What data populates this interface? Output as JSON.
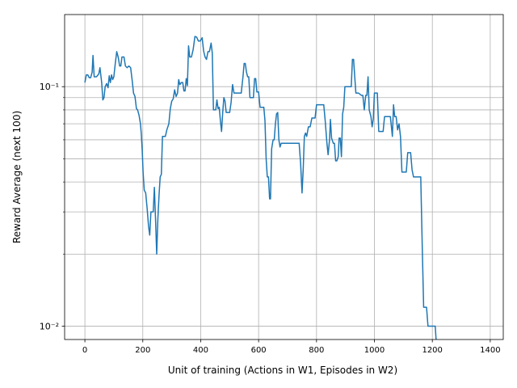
{
  "chart_data": {
    "type": "line",
    "title": "",
    "xlabel": "Unit of training (Actions in W1, Episodes in W2)",
    "ylabel": "Reward Average (next 100)",
    "xlim": [
      -70,
      1445
    ],
    "ylim": [
      0.0088,
      0.2
    ],
    "yscale": "log",
    "grid": true,
    "line_color": "#1f77b4",
    "x_ticks": [
      0,
      200,
      400,
      600,
      800,
      1000,
      1200,
      1400
    ],
    "x_tick_labels": [
      "0",
      "200",
      "400",
      "600",
      "800",
      "1000",
      "1200",
      "1400"
    ],
    "y_major_ticks": [
      0.01,
      0.1
    ],
    "y_major_labels": [
      "10⁻²",
      "10⁻¹"
    ],
    "y_minor_ticks": [
      0.02,
      0.03,
      0.04,
      0.05,
      0.06,
      0.07,
      0.08,
      0.09
    ],
    "series": [
      {
        "values": [
          [
            0,
            0.104
          ],
          [
            5,
            0.112
          ],
          [
            10,
            0.112
          ],
          [
            15,
            0.109
          ],
          [
            20,
            0.109
          ],
          [
            25,
            0.115
          ],
          [
            28,
            0.135
          ],
          [
            32,
            0.11
          ],
          [
            40,
            0.11
          ],
          [
            48,
            0.113
          ],
          [
            52,
            0.12
          ],
          [
            58,
            0.104
          ],
          [
            62,
            0.088
          ],
          [
            66,
            0.09
          ],
          [
            70,
            0.1
          ],
          [
            75,
            0.103
          ],
          [
            80,
            0.099
          ],
          [
            84,
            0.111
          ],
          [
            88,
            0.104
          ],
          [
            92,
            0.112
          ],
          [
            96,
            0.107
          ],
          [
            100,
            0.11
          ],
          [
            105,
            0.125
          ],
          [
            110,
            0.14
          ],
          [
            115,
            0.133
          ],
          [
            120,
            0.122
          ],
          [
            124,
            0.122
          ],
          [
            128,
            0.133
          ],
          [
            135,
            0.133
          ],
          [
            140,
            0.122
          ],
          [
            146,
            0.12
          ],
          [
            152,
            0.122
          ],
          [
            158,
            0.12
          ],
          [
            163,
            0.107
          ],
          [
            168,
            0.094
          ],
          [
            173,
            0.091
          ],
          [
            178,
            0.081
          ],
          [
            182,
            0.08
          ],
          [
            187,
            0.076
          ],
          [
            192,
            0.07
          ],
          [
            195,
            0.063
          ],
          [
            198,
            0.054
          ],
          [
            201,
            0.044
          ],
          [
            205,
            0.037
          ],
          [
            210,
            0.036
          ],
          [
            215,
            0.031
          ],
          [
            220,
            0.026
          ],
          [
            224,
            0.024
          ],
          [
            228,
            0.03
          ],
          [
            236,
            0.03
          ],
          [
            240,
            0.038
          ],
          [
            244,
            0.028
          ],
          [
            248,
            0.02
          ],
          [
            252,
            0.028
          ],
          [
            256,
            0.035
          ],
          [
            260,
            0.042
          ],
          [
            264,
            0.043
          ],
          [
            268,
            0.062
          ],
          [
            278,
            0.062
          ],
          [
            283,
            0.066
          ],
          [
            290,
            0.07
          ],
          [
            295,
            0.081
          ],
          [
            300,
            0.087
          ],
          [
            305,
            0.089
          ],
          [
            310,
            0.097
          ],
          [
            315,
            0.091
          ],
          [
            320,
            0.094
          ],
          [
            324,
            0.107
          ],
          [
            328,
            0.102
          ],
          [
            333,
            0.104
          ],
          [
            338,
            0.104
          ],
          [
            342,
            0.096
          ],
          [
            346,
            0.096
          ],
          [
            350,
            0.108
          ],
          [
            354,
            0.101
          ],
          [
            358,
            0.148
          ],
          [
            362,
            0.133
          ],
          [
            368,
            0.133
          ],
          [
            374,
            0.143
          ],
          [
            380,
            0.162
          ],
          [
            386,
            0.161
          ],
          [
            392,
            0.155
          ],
          [
            398,
            0.155
          ],
          [
            405,
            0.16
          ],
          [
            410,
            0.141
          ],
          [
            415,
            0.133
          ],
          [
            420,
            0.13
          ],
          [
            425,
            0.14
          ],
          [
            430,
            0.14
          ],
          [
            436,
            0.152
          ],
          [
            440,
            0.138
          ],
          [
            444,
            0.08
          ],
          [
            452,
            0.08
          ],
          [
            456,
            0.088
          ],
          [
            460,
            0.081
          ],
          [
            464,
            0.082
          ],
          [
            468,
            0.072
          ],
          [
            472,
            0.065
          ],
          [
            476,
            0.078
          ],
          [
            480,
            0.09
          ],
          [
            484,
            0.087
          ],
          [
            488,
            0.078
          ],
          [
            495,
            0.078
          ],
          [
            500,
            0.078
          ],
          [
            505,
            0.086
          ],
          [
            510,
            0.102
          ],
          [
            515,
            0.094
          ],
          [
            520,
            0.094
          ],
          [
            530,
            0.094
          ],
          [
            540,
            0.094
          ],
          [
            546,
            0.11
          ],
          [
            550,
            0.125
          ],
          [
            554,
            0.125
          ],
          [
            558,
            0.115
          ],
          [
            562,
            0.11
          ],
          [
            566,
            0.11
          ],
          [
            570,
            0.09
          ],
          [
            575,
            0.09
          ],
          [
            582,
            0.09
          ],
          [
            586,
            0.108
          ],
          [
            590,
            0.108
          ],
          [
            594,
            0.095
          ],
          [
            600,
            0.095
          ],
          [
            605,
            0.082
          ],
          [
            610,
            0.082
          ],
          [
            618,
            0.082
          ],
          [
            622,
            0.072
          ],
          [
            626,
            0.05
          ],
          [
            630,
            0.042
          ],
          [
            634,
            0.042
          ],
          [
            638,
            0.034
          ],
          [
            641,
            0.034
          ],
          [
            645,
            0.055
          ],
          [
            650,
            0.06
          ],
          [
            654,
            0.06
          ],
          [
            658,
            0.07
          ],
          [
            662,
            0.077
          ],
          [
            666,
            0.078
          ],
          [
            670,
            0.06
          ],
          [
            674,
            0.056
          ],
          [
            678,
            0.058
          ],
          [
            700,
            0.058
          ],
          [
            730,
            0.058
          ],
          [
            740,
            0.058
          ],
          [
            745,
            0.048
          ],
          [
            750,
            0.036
          ],
          [
            754,
            0.045
          ],
          [
            758,
            0.062
          ],
          [
            762,
            0.064
          ],
          [
            766,
            0.062
          ],
          [
            772,
            0.068
          ],
          [
            778,
            0.068
          ],
          [
            784,
            0.074
          ],
          [
            790,
            0.074
          ],
          [
            795,
            0.074
          ],
          [
            800,
            0.084
          ],
          [
            815,
            0.084
          ],
          [
            825,
            0.084
          ],
          [
            830,
            0.072
          ],
          [
            836,
            0.058
          ],
          [
            840,
            0.052
          ],
          [
            845,
            0.06
          ],
          [
            848,
            0.073
          ],
          [
            852,
            0.061
          ],
          [
            858,
            0.058
          ],
          [
            862,
            0.058
          ],
          [
            866,
            0.049
          ],
          [
            870,
            0.049
          ],
          [
            875,
            0.051
          ],
          [
            878,
            0.061
          ],
          [
            882,
            0.061
          ],
          [
            886,
            0.051
          ],
          [
            890,
            0.077
          ],
          [
            894,
            0.082
          ],
          [
            898,
            0.1
          ],
          [
            910,
            0.1
          ],
          [
            920,
            0.1
          ],
          [
            924,
            0.13
          ],
          [
            928,
            0.13
          ],
          [
            932,
            0.11
          ],
          [
            936,
            0.094
          ],
          [
            945,
            0.094
          ],
          [
            955,
            0.092
          ],
          [
            960,
            0.092
          ],
          [
            965,
            0.08
          ],
          [
            970,
            0.092
          ],
          [
            974,
            0.092
          ],
          [
            978,
            0.11
          ],
          [
            982,
            0.08
          ],
          [
            988,
            0.075
          ],
          [
            992,
            0.068
          ],
          [
            996,
            0.073
          ],
          [
            1000,
            0.094
          ],
          [
            1005,
            0.094
          ],
          [
            1010,
            0.094
          ],
          [
            1015,
            0.065
          ],
          [
            1020,
            0.065
          ],
          [
            1030,
            0.065
          ],
          [
            1035,
            0.075
          ],
          [
            1045,
            0.075
          ],
          [
            1055,
            0.075
          ],
          [
            1062,
            0.062
          ],
          [
            1066,
            0.084
          ],
          [
            1070,
            0.075
          ],
          [
            1075,
            0.075
          ],
          [
            1080,
            0.066
          ],
          [
            1085,
            0.07
          ],
          [
            1090,
            0.062
          ],
          [
            1095,
            0.044
          ],
          [
            1100,
            0.044
          ],
          [
            1110,
            0.044
          ],
          [
            1115,
            0.053
          ],
          [
            1125,
            0.053
          ],
          [
            1130,
            0.045
          ],
          [
            1135,
            0.042
          ],
          [
            1145,
            0.042
          ],
          [
            1150,
            0.042
          ],
          [
            1160,
            0.042
          ],
          [
            1165,
            0.022
          ],
          [
            1170,
            0.012
          ],
          [
            1175,
            0.012
          ],
          [
            1180,
            0.012
          ],
          [
            1185,
            0.01
          ],
          [
            1190,
            0.01
          ],
          [
            1200,
            0.01
          ],
          [
            1210,
            0.01
          ],
          [
            1213,
            0.0088
          ]
        ]
      }
    ]
  }
}
